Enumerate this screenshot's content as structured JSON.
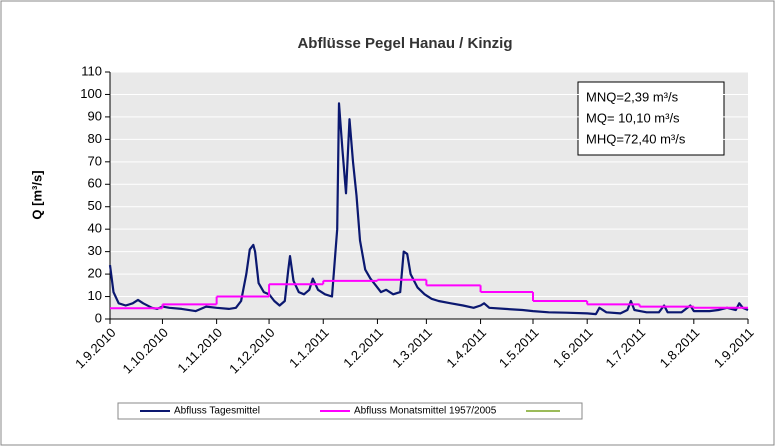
{
  "chart_data": {
    "type": "line",
    "title": "Abflüsse Pegel Hanau / Kinzig",
    "y_label": "Q [m³/s]",
    "xlim": [
      "2010-09-01",
      "2011-09-01"
    ],
    "xticks": [
      {
        "value": "2010-09-01",
        "label": "1.9.2010"
      },
      {
        "value": "2010-10-01",
        "label": "1.10.2010"
      },
      {
        "value": "2010-11-01",
        "label": "1.11.2010"
      },
      {
        "value": "2010-12-01",
        "label": "1.12.2010"
      },
      {
        "value": "2011-01-01",
        "label": "1.1.2011"
      },
      {
        "value": "2011-02-01",
        "label": "1.2.2011"
      },
      {
        "value": "2011-03-01",
        "label": "1.3.2011"
      },
      {
        "value": "2011-04-01",
        "label": "1.4.2011"
      },
      {
        "value": "2011-05-01",
        "label": "1.5.2011"
      },
      {
        "value": "2011-06-01",
        "label": "1.6.2011"
      },
      {
        "value": "2011-07-01",
        "label": "1.7.2011"
      },
      {
        "value": "2011-08-01",
        "label": "1.8.2011"
      },
      {
        "value": "2011-09-01",
        "label": "1.9.2011"
      }
    ],
    "ylim": [
      0,
      110
    ],
    "yticks": [
      0,
      10,
      20,
      30,
      40,
      50,
      60,
      70,
      80,
      90,
      100,
      110
    ],
    "grid": true,
    "legend": "bottom",
    "annotations": [
      "MNQ=2,39 m³/s",
      "MQ= 10,10 m³/s",
      "MHQ=72,40 m³/s"
    ],
    "series": [
      {
        "name": "Abfluss Tagesmittel",
        "color": "#0b1870",
        "x": [
          "2010-09-01",
          "2010-09-03",
          "2010-09-06",
          "2010-09-10",
          "2010-09-14",
          "2010-09-17",
          "2010-09-20",
          "2010-09-25",
          "2010-09-28",
          "2010-10-01",
          "2010-10-05",
          "2010-10-12",
          "2010-10-20",
          "2010-10-26",
          "2010-11-01",
          "2010-11-08",
          "2010-11-12",
          "2010-11-15",
          "2010-11-18",
          "2010-11-20",
          "2010-11-22",
          "2010-11-23",
          "2010-11-25",
          "2010-11-28",
          "2010-12-01",
          "2010-12-04",
          "2010-12-07",
          "2010-12-10",
          "2010-12-12",
          "2010-12-13",
          "2010-12-15",
          "2010-12-18",
          "2010-12-21",
          "2010-12-24",
          "2010-12-26",
          "2010-12-29",
          "2011-01-02",
          "2011-01-06",
          "2011-01-09",
          "2011-01-10",
          "2011-01-12",
          "2011-01-14",
          "2011-01-16",
          "2011-01-18",
          "2011-01-20",
          "2011-01-22",
          "2011-01-25",
          "2011-01-28",
          "2011-01-31",
          "2011-02-03",
          "2011-02-06",
          "2011-02-10",
          "2011-02-14",
          "2011-02-16",
          "2011-02-18",
          "2011-02-20",
          "2011-02-24",
          "2011-02-28",
          "2011-03-04",
          "2011-03-08",
          "2011-03-15",
          "2011-03-22",
          "2011-03-28",
          "2011-04-01",
          "2011-04-03",
          "2011-04-06",
          "2011-04-15",
          "2011-04-25",
          "2011-05-01",
          "2011-05-10",
          "2011-05-20",
          "2011-06-01",
          "2011-06-06",
          "2011-06-08",
          "2011-06-12",
          "2011-06-20",
          "2011-06-24",
          "2011-06-26",
          "2011-06-28",
          "2011-07-05",
          "2011-07-12",
          "2011-07-15",
          "2011-07-17",
          "2011-07-25",
          "2011-07-30",
          "2011-08-01",
          "2011-08-10",
          "2011-08-15",
          "2011-08-20",
          "2011-08-25",
          "2011-08-27",
          "2011-08-29",
          "2011-09-01"
        ],
        "values": [
          24,
          12,
          7,
          6,
          7,
          8.5,
          7,
          5,
          4.5,
          5.5,
          5,
          4.5,
          3.5,
          5.5,
          5,
          4.5,
          5,
          8,
          20,
          31,
          33,
          30,
          16,
          12,
          11,
          8,
          6,
          8,
          22,
          28,
          17,
          12,
          11,
          13,
          18,
          13,
          11,
          10,
          40,
          96,
          75,
          56,
          89,
          70,
          55,
          35,
          22,
          18,
          15,
          12,
          13,
          11,
          12,
          30,
          29,
          20,
          14,
          11,
          9,
          8,
          7,
          6,
          5,
          6,
          7,
          5,
          4.5,
          4,
          3.5,
          3,
          2.8,
          2.5,
          2.2,
          5,
          3,
          2.5,
          4,
          8,
          4,
          3,
          3,
          6,
          3,
          3,
          6,
          3.5,
          3.5,
          4,
          5,
          4,
          7,
          5,
          4
        ]
      },
      {
        "name": "Abfluss Monatsmittel 1957/2005",
        "color": "#ff00ff",
        "bins": [
          "2010-09-01",
          "2010-10-01",
          "2010-11-01",
          "2010-12-01",
          "2011-01-01",
          "2011-02-01",
          "2011-03-01",
          "2011-04-01",
          "2011-05-01",
          "2011-06-01",
          "2011-07-01",
          "2011-08-01",
          "2011-09-01"
        ],
        "values": [
          4.8,
          6.5,
          10,
          15.5,
          17,
          17.5,
          15,
          12,
          8,
          6.5,
          5.5,
          5
        ]
      }
    ]
  }
}
